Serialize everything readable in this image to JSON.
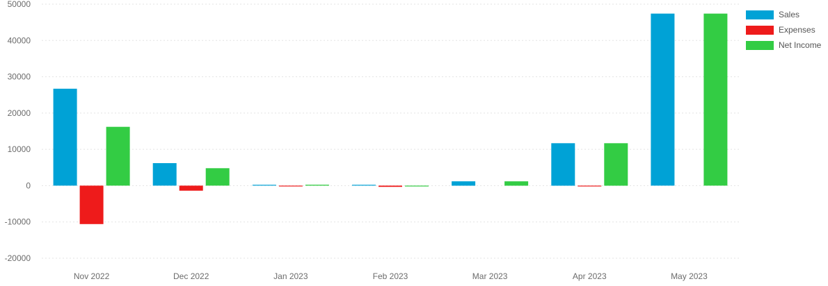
{
  "chart_data": {
    "type": "bar",
    "title": "",
    "xlabel": "",
    "ylabel": "",
    "ylim": [
      -20000,
      50000
    ],
    "yticks": [
      50000,
      40000,
      30000,
      20000,
      10000,
      0,
      -10000,
      -20000
    ],
    "grid": true,
    "legend_position": "top-right",
    "categories": [
      "Nov 2022",
      "Dec 2022",
      "Jan 2023",
      "Feb 2023",
      "Mar 2023",
      "Apr 2023",
      "May 2023"
    ],
    "series": [
      {
        "name": "Sales",
        "color": "#00a2d6",
        "values": [
          26700,
          6200,
          200,
          150,
          1200,
          11700,
          47400
        ]
      },
      {
        "name": "Expenses",
        "color": "#ee1b1b",
        "values": [
          -10600,
          -1400,
          -100,
          -350,
          0,
          -80,
          0
        ]
      },
      {
        "name": "Net Income",
        "color": "#33cc44",
        "values": [
          16200,
          4800,
          250,
          -100,
          1200,
          11700,
          47400
        ]
      }
    ]
  }
}
